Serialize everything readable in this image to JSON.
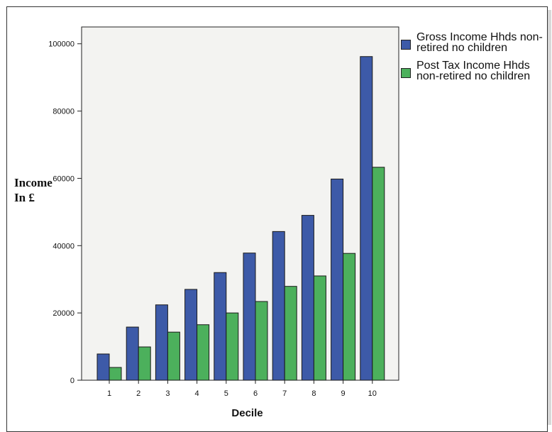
{
  "chart_data": {
    "type": "bar",
    "categories": [
      "1",
      "2",
      "3",
      "4",
      "5",
      "6",
      "7",
      "8",
      "9",
      "10"
    ],
    "series": [
      {
        "name": "Gross Income Hhds non-retired no children",
        "color": "#3d5aa8",
        "values": [
          7800,
          15800,
          22400,
          27000,
          32000,
          37800,
          44200,
          49000,
          59800,
          96200
        ]
      },
      {
        "name": "Post Tax Income Hhds non-retired no children",
        "color": "#4cb05c",
        "values": [
          3800,
          9900,
          14300,
          16500,
          20000,
          23400,
          27900,
          31000,
          37700,
          63300
        ]
      }
    ],
    "xlabel": "Decile",
    "ylabel_lines": [
      "Income",
      "In £"
    ],
    "ylim": [
      0,
      105000
    ],
    "yticks": [
      0,
      20000,
      40000,
      60000,
      80000,
      100000
    ],
    "plot_background": "#f3f3f1",
    "grid": false,
    "legend_position": "right"
  }
}
